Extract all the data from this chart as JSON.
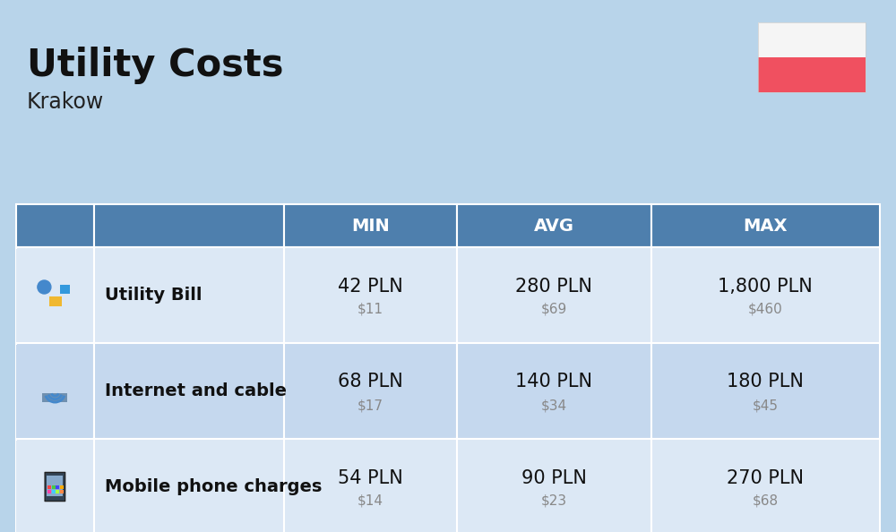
{
  "title": "Utility Costs",
  "subtitle": "Krakow",
  "background_color": "#b8d4ea",
  "header_color": "#4e7fad",
  "header_text_color": "#ffffff",
  "row_color_light": "#dce8f5",
  "row_color_dark": "#c5d8ee",
  "table_border_color": "#ffffff",
  "flag_white": "#f5f5f5",
  "flag_red": "#f05060",
  "rows": [
    {
      "label": "Utility Bill",
      "min_pln": "42 PLN",
      "min_usd": "$11",
      "avg_pln": "280 PLN",
      "avg_usd": "$69",
      "max_pln": "1,800 PLN",
      "max_usd": "$460"
    },
    {
      "label": "Internet and cable",
      "min_pln": "68 PLN",
      "min_usd": "$17",
      "avg_pln": "140 PLN",
      "avg_usd": "$34",
      "max_pln": "180 PLN",
      "max_usd": "$45"
    },
    {
      "label": "Mobile phone charges",
      "min_pln": "54 PLN",
      "min_usd": "$14",
      "avg_pln": "90 PLN",
      "avg_usd": "$23",
      "max_pln": "270 PLN",
      "max_usd": "$68"
    }
  ],
  "title_fontsize": 30,
  "subtitle_fontsize": 17,
  "header_fontsize": 14,
  "label_fontsize": 14,
  "pln_fontsize": 15,
  "usd_fontsize": 11,
  "icon_fontsize": 26
}
